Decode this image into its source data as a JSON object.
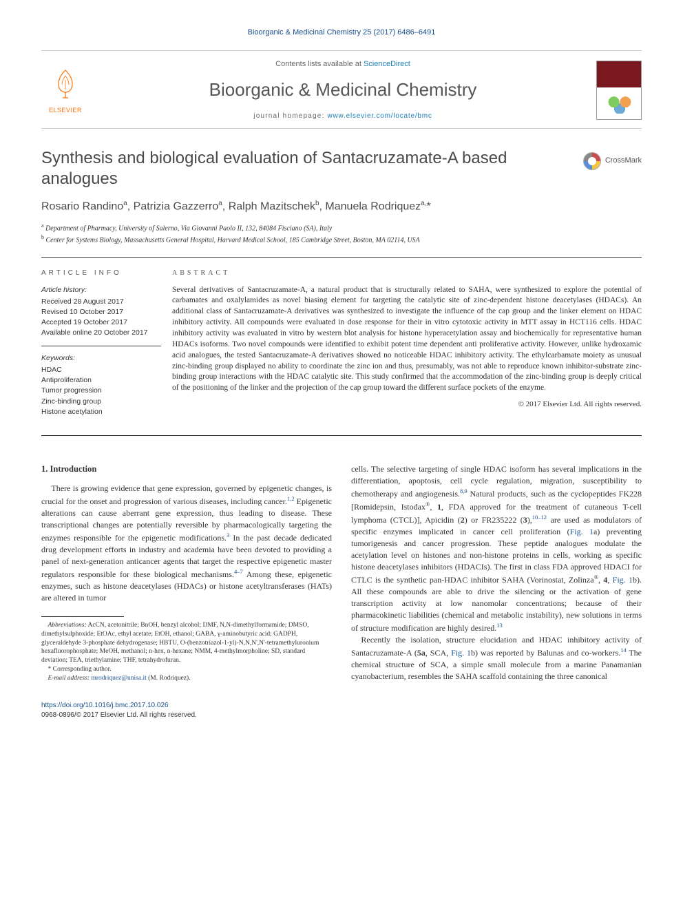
{
  "citation": "Bioorganic & Medicinal Chemistry 25 (2017) 6486–6491",
  "masthead": {
    "publisher": "ELSEVIER",
    "contents_prefix": "Contents lists available at ",
    "contents_link": "ScienceDirect",
    "journal": "Bioorganic & Medicinal Chemistry",
    "homepage_prefix": "journal homepage: ",
    "homepage_url": "www.elsevier.com/locate/bmc"
  },
  "article": {
    "title": "Synthesis and biological evaluation of Santacruzamate-A based analogues",
    "crossmark": "CrossMark",
    "authors_html": "Rosario Randino<sup>a</sup>, Patrizia Gazzerro<sup>a</sup>, Ralph Mazitschek<sup>b</sup>, Manuela Rodriquez<sup>a,</sup><span class='corr'>*</span>",
    "affiliations": [
      "Department of Pharmacy, University of Salerno, Via Giovanni Paolo II, 132, 84084 Fisciano (SA), Italy",
      "Center for Systems Biology, Massachusetts General Hospital, Harvard Medical School, 185 Cambridge Street, Boston, MA 02114, USA"
    ],
    "aff_markers": [
      "a",
      "b"
    ]
  },
  "info": {
    "heading": "ARTICLE INFO",
    "history_label": "Article history:",
    "history": [
      "Received 28 August 2017",
      "Revised 10 October 2017",
      "Accepted 19 October 2017",
      "Available online 20 October 2017"
    ],
    "keywords_label": "Keywords:",
    "keywords": [
      "HDAC",
      "Antiproliferation",
      "Tumor progression",
      "Zinc-binding group",
      "Histone acetylation"
    ]
  },
  "abstract": {
    "heading": "ABSTRACT",
    "text": "Several derivatives of Santacruzamate-A, a natural product that is structurally related to SAHA, were synthesized to explore the potential of carbamates and oxalylamides as novel biasing element for targeting the catalytic site of zinc-dependent histone deacetylases (HDACs). An additional class of Santacruzamate-A derivatives was synthesized to investigate the influence of the cap group and the linker element on HDAC inhibitory activity. All compounds were evaluated in dose response for their in vitro cytotoxic activity in MTT assay in HCT116 cells. HDAC inhibitory activity was evaluated in vitro by western blot analysis for histone hyperacetylation assay and biochemically for representative human HDACs isoforms. Two novel compounds were identified to exhibit potent time dependent anti proliferative activity. However, unlike hydroxamic acid analogues, the tested Santacruzamate-A derivatives showed no noticeable HDAC inhibitory activity. The ethylcarbamate moiety as unusual zinc-binding group displayed no ability to coordinate the zinc ion and thus, presumably, was not able to reproduce known inhibitor-substrate zinc-binding group interactions with the HDAC catalytic site. This study confirmed that the accommodation of the zinc-binding group is deeply critical of the positioning of the linker and the projection of the cap group toward the different surface pockets of the enzyme.",
    "copyright": "© 2017 Elsevier Ltd. All rights reserved."
  },
  "body": {
    "section1_heading": "1. Introduction",
    "p1": "There is growing evidence that gene expression, governed by epigenetic changes, is crucial for the onset and progression of various diseases, including cancer.<sup>1,2</sup> Epigenetic alterations can cause aberrant gene expression, thus leading to disease. These transcriptional changes are potentially reversible by pharmacologically targeting the enzymes responsible for the epigenetic modifications.<sup>3</sup> In the past decade dedicated drug development efforts in industry and academia have been devoted to providing a panel of next-generation anticancer agents that target the respective epigenetic master regulators responsible for these biological mechanisms.<sup>4–7</sup> Among these, epigenetic enzymes, such as histone deacetylases (HDACs) or histone acetyltransferases (HATs) are altered in tumor",
    "p2": "cells. The selective targeting of single HDAC isoform has several implications in the differentiation, apoptosis, cell cycle regulation, migration, susceptibility to chemotherapy and angiogenesis.<sup>8,9</sup> Natural products, such as the cyclopeptides FK228 [Romidepsin, Istodax<sup class='plain'>®</sup>, <b>1</b>, FDA approved for the treatment of cutaneous T-cell lymphoma (CTCL)], Apicidin (<b>2</b>) or FR235222 (<b>3</b>),<sup>10–12</sup> are used as modulators of specific enzymes implicated in cancer cell proliferation (<span class='fig-ref'>Fig. 1</span>a) preventing tumorigenesis and cancer progression. These peptide analogues modulate the acetylation level on histones and non-histone proteins in cells, working as specific histone deacetylases inhibitors (HDACIs). The first in class FDA approved HDACI for CTLC is the synthetic pan-HDAC inhibitor SAHA (Vorinostat, Zolinza<sup class='plain'>®</sup>, <b>4</b>, <span class='fig-ref'>Fig. 1</span>b). All these compounds are able to drive the silencing or the activation of gene transcription activity at low nanomolar concentrations; because of their pharmacokinetic liabilities (chemical and metabolic instability), new solutions in terms of structure modification are highly desired.<sup>13</sup>",
    "p3": "Recently the isolation, structure elucidation and HDAC inhibitory activity of Santacruzamate-A (<b>5a</b>, SCA, <span class='fig-ref'>Fig. 1</span>b) was reported by Balunas and co-workers.<sup>14</sup> The chemical structure of SCA, a simple small molecule from a marine Panamanian cyanobacterium, resembles the SAHA scaffold containing the three canonical"
  },
  "footnotes": {
    "abbrev_label": "Abbreviations:",
    "abbrev": "AcCN, acetonitrile; BnOH, benzyl alcohol; DMF, N,N-dimethylformamide; DMSO, dimethylsulphoxide; EtOAc, ethyl acetate; EtOH, ethanol; GABA, γ-aminobutyric acid; GADPH, glyceraldehyde 3-phosphate dehydrogenase; HBTU, O-(benzotriazol-1-yl)-N,N,N',N'-tetramethyluronium hexafluorophosphate; MeOH, methanol; n-hex, n-hexane; NMM, 4-methylmorpholine; SD, standard deviation; TEA, triethylamine; THF, tetrahydrofuran.",
    "corr_label": "* Corresponding author.",
    "email_label": "E-mail address:",
    "email": "mrodriquez@unisa.it",
    "email_person": "(M. Rodriquez)."
  },
  "footer": {
    "doi": "https://doi.org/10.1016/j.bmc.2017.10.026",
    "issn_line": "0968-0896/© 2017 Elsevier Ltd. All rights reserved."
  },
  "colors": {
    "link": "#1a4f8c",
    "sciencedirect": "#1a7db9",
    "elsevier_orange": "#ff6c00",
    "text": "#333333",
    "heading_gray": "#4a4a4a"
  }
}
